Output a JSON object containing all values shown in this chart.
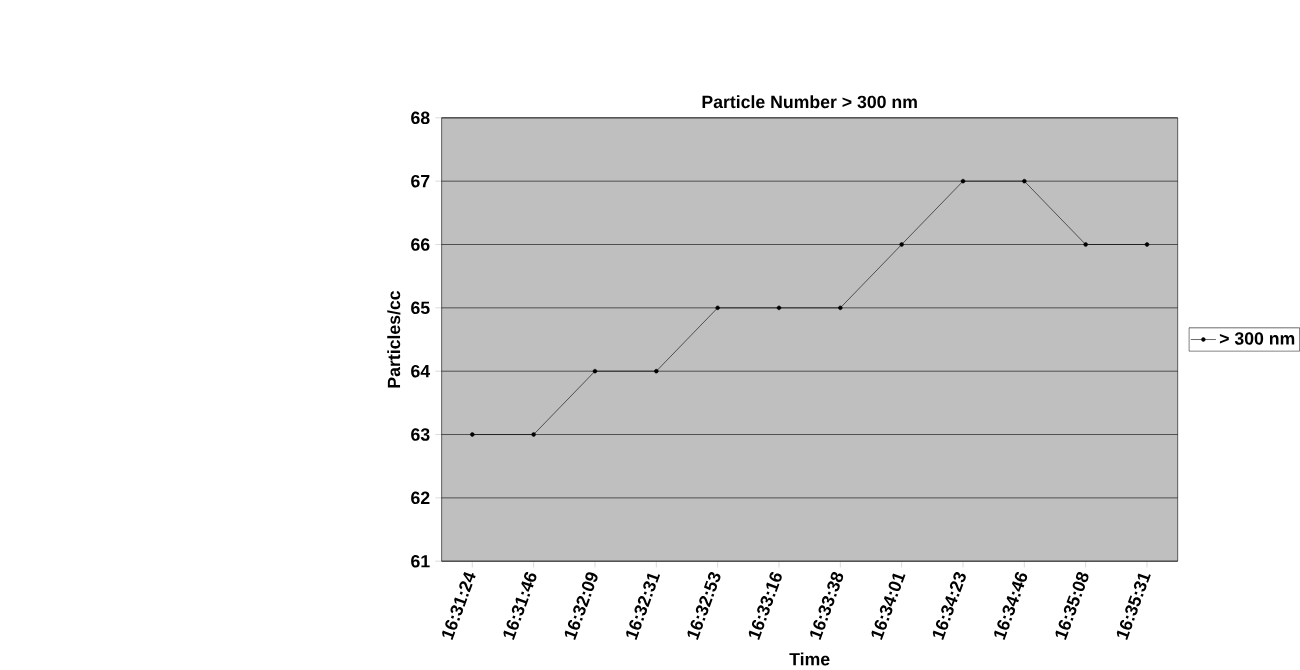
{
  "chart_data": {
    "type": "line",
    "title": "Particle Number > 300 nm",
    "xlabel": "Time",
    "ylabel": "Particles/cc",
    "categories": [
      "16:31:24",
      "16:31:46",
      "16:32:09",
      "16:32:31",
      "16:32:53",
      "16:33:16",
      "16:33:38",
      "16:34:01",
      "16:34:23",
      "16:34:46",
      "16:35:08",
      "16:35:31"
    ],
    "series": [
      {
        "name": "> 300 nm",
        "color": "#000000",
        "values": [
          63,
          63,
          64,
          64,
          65,
          65,
          65,
          66,
          67,
          67,
          66,
          66
        ]
      }
    ],
    "ylim": [
      61,
      68
    ],
    "yticks": [
      61,
      62,
      63,
      64,
      65,
      66,
      67,
      68
    ],
    "grid": "y",
    "legend": "right",
    "marker": "circle"
  }
}
